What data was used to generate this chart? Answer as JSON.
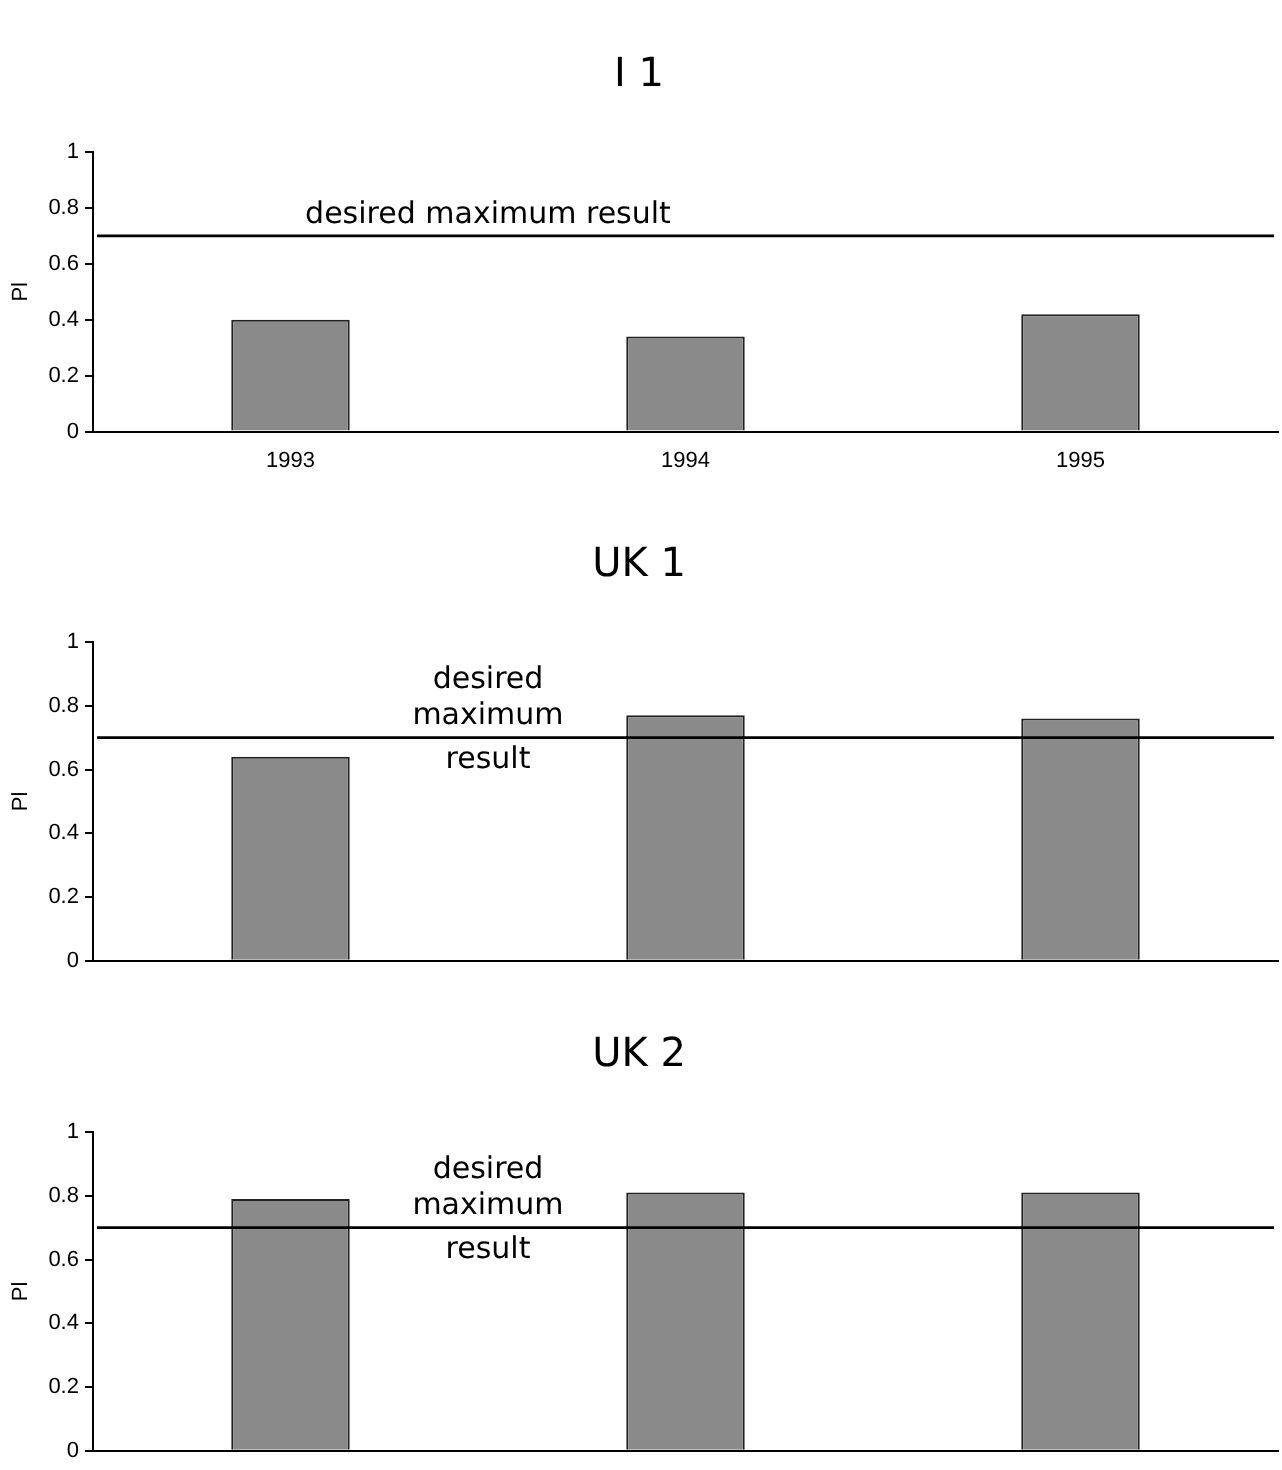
{
  "chart_data": [
    {
      "type": "bar",
      "title": "I 1",
      "ylabel": "Pl",
      "categories": [
        "1993",
        "1994",
        "1995"
      ],
      "values": [
        0.4,
        0.34,
        0.42
      ],
      "color": "#8a8a8a",
      "ylim": [
        0,
        1
      ],
      "yticks": [
        0,
        0.2,
        0.4,
        0.6,
        0.8,
        1
      ],
      "grid": false,
      "legend": false,
      "ref_lines": [
        {
          "axis": "y",
          "value": 0.7,
          "label": "desired maximum result"
        }
      ]
    },
    {
      "type": "bar",
      "title": "UK 1",
      "ylabel": "Pl",
      "categories": [
        null,
        null,
        null
      ],
      "values": [
        0.64,
        0.77,
        0.76
      ],
      "color": "#8a8a8a",
      "ylim": [
        0,
        1
      ],
      "yticks": [
        0,
        0.2,
        0.4,
        0.6,
        0.8,
        1
      ],
      "grid": false,
      "legend": false,
      "tick_labels": "y",
      "ref_lines": [
        {
          "axis": "y",
          "value": 0.7,
          "label": "desired maximum result"
        }
      ]
    },
    {
      "type": "bar",
      "title": "UK 2",
      "ylabel": "Pl",
      "categories": [
        null,
        null,
        null
      ],
      "values": [
        0.79,
        0.81,
        0.81
      ],
      "color": "#8a8a8a",
      "ylim": [
        0,
        1
      ],
      "yticks": [
        0,
        0.2,
        0.4,
        0.6,
        0.8,
        1
      ],
      "grid": false,
      "legend": false,
      "tick_labels": "y",
      "ref_lines": [
        {
          "axis": "y",
          "value": 0.7,
          "label": "desired maximum result"
        }
      ]
    }
  ]
}
